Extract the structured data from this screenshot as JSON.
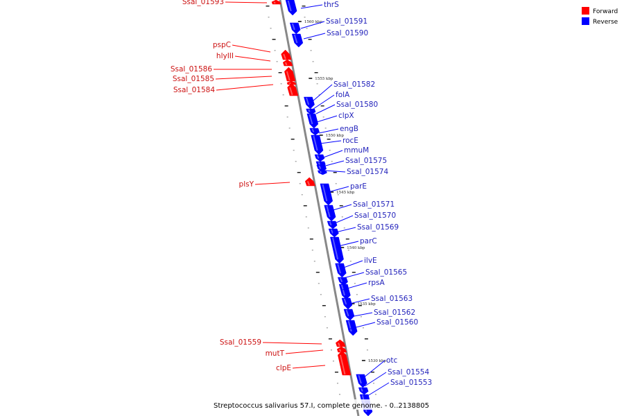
{
  "caption": "Streptococcus salivarius 57.I, complete genome. - 0..2138805",
  "legend": [
    {
      "label": "Forward",
      "color": "#ff0000"
    },
    {
      "label": "Reverse",
      "color": "#0000ff"
    }
  ],
  "colors": {
    "forward": "#ff0000",
    "reverse": "#0000ff",
    "backbone": "#888888"
  },
  "ticks": [
    {
      "label": "1560 kbp"
    },
    {
      "label": "1555 kbp"
    },
    {
      "label": "1550 kbp"
    },
    {
      "label": "1545 kbp"
    },
    {
      "label": "1540 kbp"
    },
    {
      "label": "1535 kbp"
    },
    {
      "label": "1530 kbp"
    }
  ],
  "genes": [
    {
      "name": "Ssal_01593",
      "strand": "forward"
    },
    {
      "name": "thrS",
      "strand": "reverse"
    },
    {
      "name": "Ssal_01591",
      "strand": "reverse"
    },
    {
      "name": "Ssal_01590",
      "strand": "reverse"
    },
    {
      "name": "pspC",
      "strand": "forward"
    },
    {
      "name": "hlyIII",
      "strand": "forward"
    },
    {
      "name": "Ssal_01586",
      "strand": "forward"
    },
    {
      "name": "Ssal_01585",
      "strand": "forward"
    },
    {
      "name": "Ssal_01584",
      "strand": "forward"
    },
    {
      "name": "Ssal_01582",
      "strand": "reverse"
    },
    {
      "name": "folA",
      "strand": "reverse"
    },
    {
      "name": "Ssal_01580",
      "strand": "reverse"
    },
    {
      "name": "clpX",
      "strand": "reverse"
    },
    {
      "name": "engB",
      "strand": "reverse"
    },
    {
      "name": "rocE",
      "strand": "reverse"
    },
    {
      "name": "mmuM",
      "strand": "reverse"
    },
    {
      "name": "Ssal_01575",
      "strand": "reverse"
    },
    {
      "name": "Ssal_01574",
      "strand": "reverse"
    },
    {
      "name": "plsY",
      "strand": "forward"
    },
    {
      "name": "parE",
      "strand": "reverse"
    },
    {
      "name": "Ssal_01571",
      "strand": "reverse"
    },
    {
      "name": "Ssal_01570",
      "strand": "reverse"
    },
    {
      "name": "Ssal_01569",
      "strand": "reverse"
    },
    {
      "name": "parC",
      "strand": "reverse"
    },
    {
      "name": "ilvE",
      "strand": "reverse"
    },
    {
      "name": "Ssal_01565",
      "strand": "reverse"
    },
    {
      "name": "rpsA",
      "strand": "reverse"
    },
    {
      "name": "Ssal_01563",
      "strand": "reverse"
    },
    {
      "name": "Ssal_01562",
      "strand": "reverse"
    },
    {
      "name": "Ssal_01560",
      "strand": "reverse"
    },
    {
      "name": "Ssal_01559",
      "strand": "forward"
    },
    {
      "name": "mutT",
      "strand": "forward"
    },
    {
      "name": "clpE",
      "strand": "forward"
    },
    {
      "name": "otc",
      "strand": "reverse"
    },
    {
      "name": "Ssal_01554",
      "strand": "reverse"
    },
    {
      "name": "Ssal_01553",
      "strand": "reverse"
    }
  ]
}
